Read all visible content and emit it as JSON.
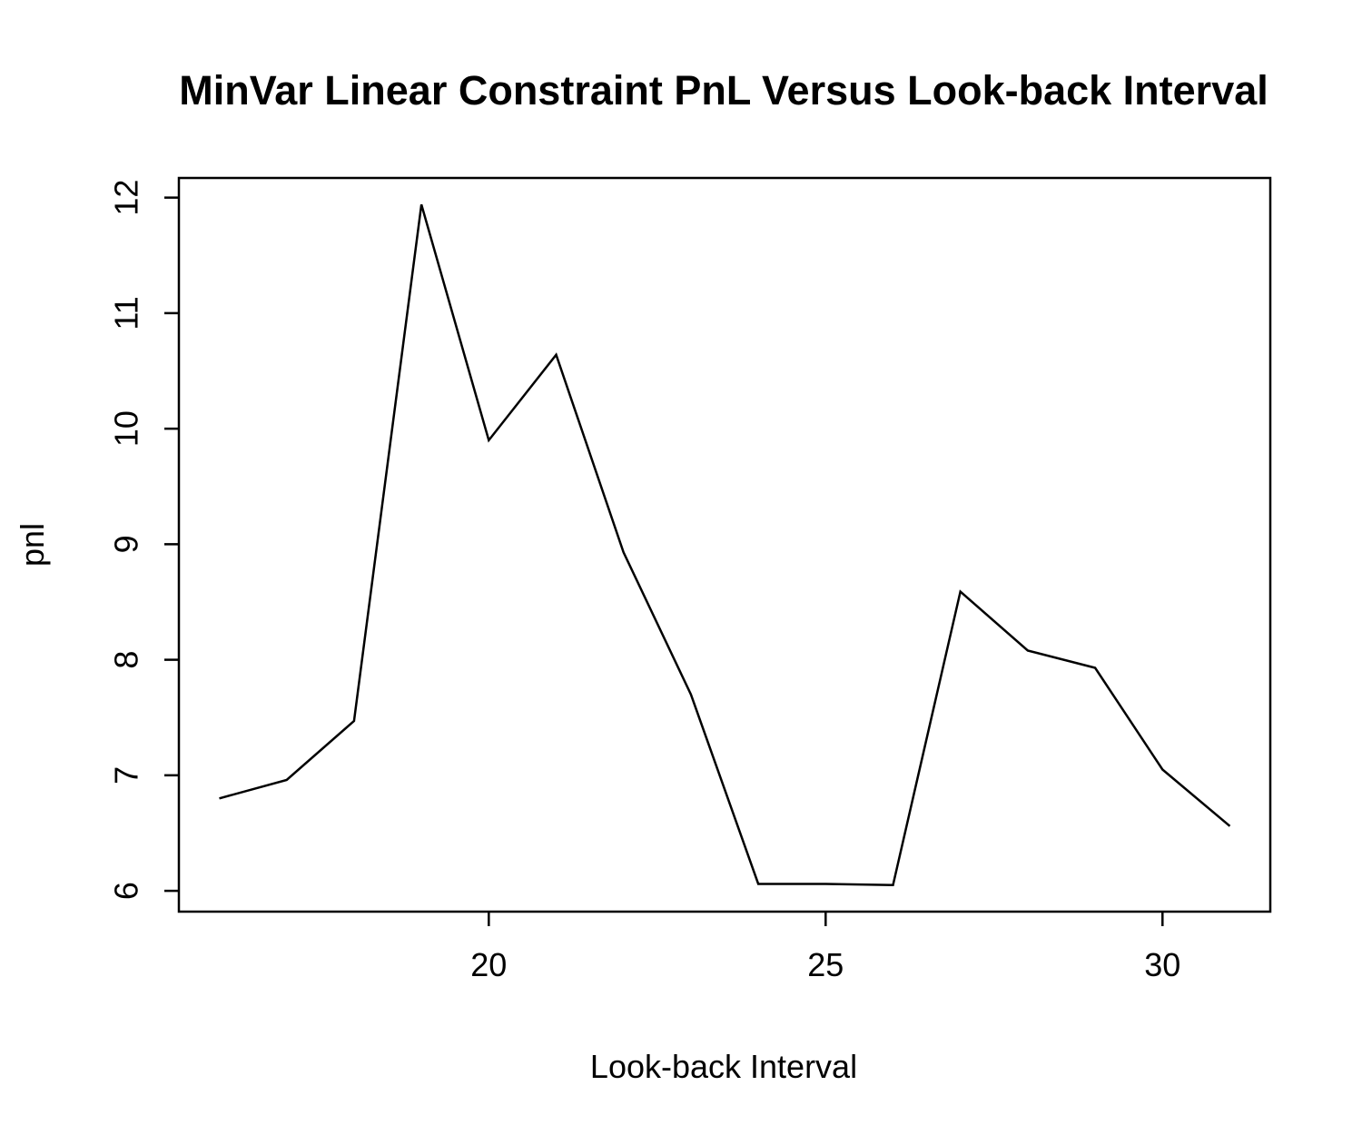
{
  "chart_data": {
    "type": "line",
    "title": "MinVar Linear Constraint PnL Versus Look-back Interval",
    "xlabel": "Look-back Interval",
    "ylabel": "pnl",
    "x": [
      16,
      17,
      18,
      19,
      20,
      21,
      22,
      23,
      24,
      25,
      26,
      27,
      28,
      29,
      30,
      31
    ],
    "series": [
      {
        "values": [
          6.8,
          6.96,
          7.47,
          11.94,
          9.9,
          10.64,
          8.93,
          7.7,
          6.06,
          6.06,
          6.05,
          8.59,
          8.08,
          7.93,
          7.05,
          6.56
        ]
      }
    ],
    "xlim": [
      15.4,
      31.6
    ],
    "ylim": [
      5.82,
      12.17
    ],
    "x_ticks": [
      20,
      25,
      30
    ],
    "x_tick_labels": [
      "20",
      "25",
      "30"
    ],
    "y_ticks": [
      6,
      7,
      8,
      9,
      10,
      11,
      12
    ],
    "y_tick_labels": [
      "6",
      "7",
      "8",
      "9",
      "10",
      "11",
      "12"
    ],
    "grid": false,
    "legend": "none",
    "line_color": "#000000"
  }
}
